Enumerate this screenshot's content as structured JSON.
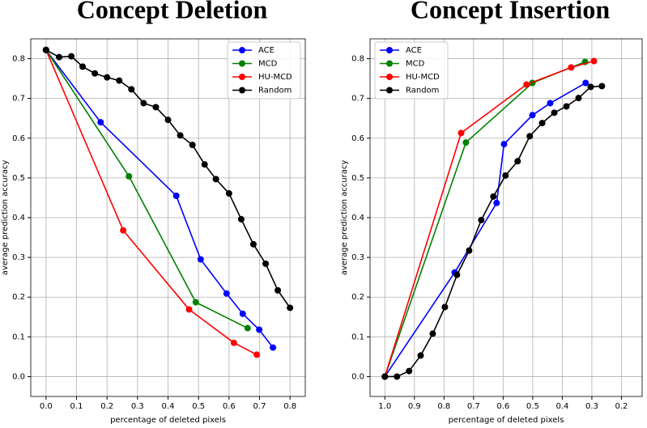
{
  "chart_data": [
    {
      "type": "line",
      "title": "Concept Deletion",
      "xlabel": "percentage of deleted pixels",
      "ylabel": "average prediction accuracy",
      "xlim": [
        -0.05,
        0.85
      ],
      "ylim": [
        -0.05,
        0.85
      ],
      "xticks": [
        {
          "value": 0,
          "label": "0.0"
        },
        0.1,
        0.2,
        0.3,
        0.4,
        0.5,
        0.6,
        0.7,
        0.8
      ],
      "yticks": [
        {
          "value": 0,
          "label": "0.0"
        },
        0.1,
        0.2,
        0.3,
        0.4,
        0.5,
        0.6,
        0.7,
        0.8
      ],
      "grid": true,
      "legend": "upper right",
      "series": [
        {
          "name": "ACE",
          "color": "#0000ff",
          "x": [
            0,
            0.179,
            0.427,
            0.507,
            0.592,
            0.645,
            0.699,
            0.744
          ],
          "values": [
            0.822,
            0.64,
            0.455,
            0.295,
            0.209,
            0.158,
            0.118,
            0.073
          ]
        },
        {
          "name": "MCD",
          "color": "#008000",
          "x": [
            0,
            0.272,
            0.491,
            0.661
          ],
          "values": [
            0.822,
            0.504,
            0.187,
            0.122
          ]
        },
        {
          "name": "HU-MCD",
          "color": "#ff0000",
          "x": [
            0,
            0.253,
            0.469,
            0.616,
            0.691
          ],
          "values": [
            0.822,
            0.368,
            0.169,
            0.085,
            0.055
          ]
        },
        {
          "name": "Random",
          "color": "#000000",
          "x": [
            0,
            0.043,
            0.083,
            0.12,
            0.16,
            0.2,
            0.24,
            0.28,
            0.32,
            0.36,
            0.4,
            0.44,
            0.48,
            0.52,
            0.557,
            0.6,
            0.64,
            0.68,
            0.72,
            0.76,
            0.8
          ],
          "values": [
            0.822,
            0.804,
            0.806,
            0.78,
            0.763,
            0.753,
            0.745,
            0.723,
            0.688,
            0.678,
            0.646,
            0.607,
            0.583,
            0.534,
            0.497,
            0.461,
            0.396,
            0.333,
            0.284,
            0.217,
            0.173
          ]
        }
      ]
    },
    {
      "type": "line",
      "title": "Concept Insertion",
      "xlabel": "percentage of deleted pixels",
      "ylabel": "average prediction accuracy",
      "xlim": [
        1.05,
        0.13
      ],
      "ylim": [
        -0.05,
        0.85
      ],
      "xticks": [
        {
          "value": 1,
          "label": "1.0"
        },
        0.9,
        0.8,
        0.7,
        0.6,
        0.5,
        0.4,
        0.3,
        0.2
      ],
      "yticks": [
        {
          "value": 0,
          "label": "0.0"
        },
        0.1,
        0.2,
        0.3,
        0.4,
        0.5,
        0.6,
        0.7,
        0.8
      ],
      "grid": true,
      "legend": "upper left",
      "series": [
        {
          "name": "ACE",
          "color": "#0000ff",
          "x": [
            1,
            0.764,
            0.622,
            0.597,
            0.501,
            0.441,
            0.321
          ],
          "values": [
            0,
            0.262,
            0.437,
            0.585,
            0.658,
            0.688,
            0.739
          ]
        },
        {
          "name": "MCD",
          "color": "#008000",
          "x": [
            1,
            0.726,
            0.501,
            0.323
          ],
          "values": [
            0,
            0.589,
            0.739,
            0.792
          ]
        },
        {
          "name": "HU-MCD",
          "color": "#ff0000",
          "x": [
            1,
            0.742,
            0.521,
            0.37,
            0.293
          ],
          "values": [
            0,
            0.613,
            0.735,
            0.778,
            0.794
          ]
        },
        {
          "name": "Random",
          "color": "#000000",
          "x": [
            1,
            0.959,
            0.918,
            0.879,
            0.838,
            0.797,
            0.756,
            0.715,
            0.674,
            0.633,
            0.592,
            0.551,
            0.51,
            0.468,
            0.427,
            0.386,
            0.345,
            0.304,
            0.266
          ],
          "values": [
            0,
            0,
            0.014,
            0.053,
            0.108,
            0.175,
            0.256,
            0.317,
            0.394,
            0.453,
            0.506,
            0.542,
            0.605,
            0.638,
            0.664,
            0.68,
            0.701,
            0.729,
            0.731
          ]
        }
      ]
    }
  ]
}
